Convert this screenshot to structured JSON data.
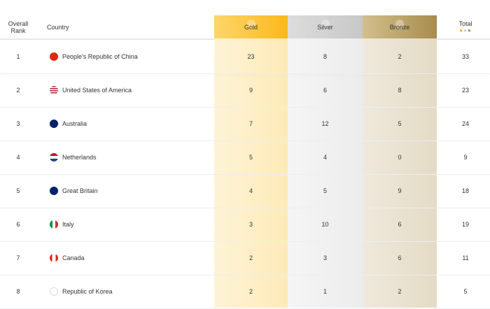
{
  "header": {
    "rank": "Overall Rank",
    "country": "Country",
    "gold": "Gold",
    "silver": "Silver",
    "bronze": "Bronze",
    "total": "Total"
  },
  "colors": {
    "gold": "#fcc22d",
    "silver": "#cfcfcf",
    "bronze": "#a88c4e"
  },
  "rows": [
    {
      "rank": "1",
      "country": "People's Republic of China",
      "flag": "china-flag-icon",
      "gold": "23",
      "silver": "8",
      "bronze": "2",
      "total": "33"
    },
    {
      "rank": "2",
      "country": "United States of America",
      "flag": "usa-flag-icon",
      "gold": "9",
      "silver": "6",
      "bronze": "8",
      "total": "23"
    },
    {
      "rank": "3",
      "country": "Australia",
      "flag": "australia-flag-icon",
      "gold": "7",
      "silver": "12",
      "bronze": "5",
      "total": "24"
    },
    {
      "rank": "4",
      "country": "Netherlands",
      "flag": "netherlands-flag-icon",
      "gold": "5",
      "silver": "4",
      "bronze": "0",
      "total": "9"
    },
    {
      "rank": "5",
      "country": "Great Britain",
      "flag": "great-britain-flag-icon",
      "gold": "4",
      "silver": "5",
      "bronze": "9",
      "total": "18"
    },
    {
      "rank": "6",
      "country": "Italy",
      "flag": "italy-flag-icon",
      "gold": "3",
      "silver": "10",
      "bronze": "6",
      "total": "19"
    },
    {
      "rank": "7",
      "country": "Canada",
      "flag": "canada-flag-icon",
      "gold": "2",
      "silver": "3",
      "bronze": "6",
      "total": "11"
    },
    {
      "rank": "8",
      "country": "Republic of Korea",
      "flag": "korea-flag-icon",
      "gold": "2",
      "silver": "1",
      "bronze": "2",
      "total": "5"
    }
  ]
}
